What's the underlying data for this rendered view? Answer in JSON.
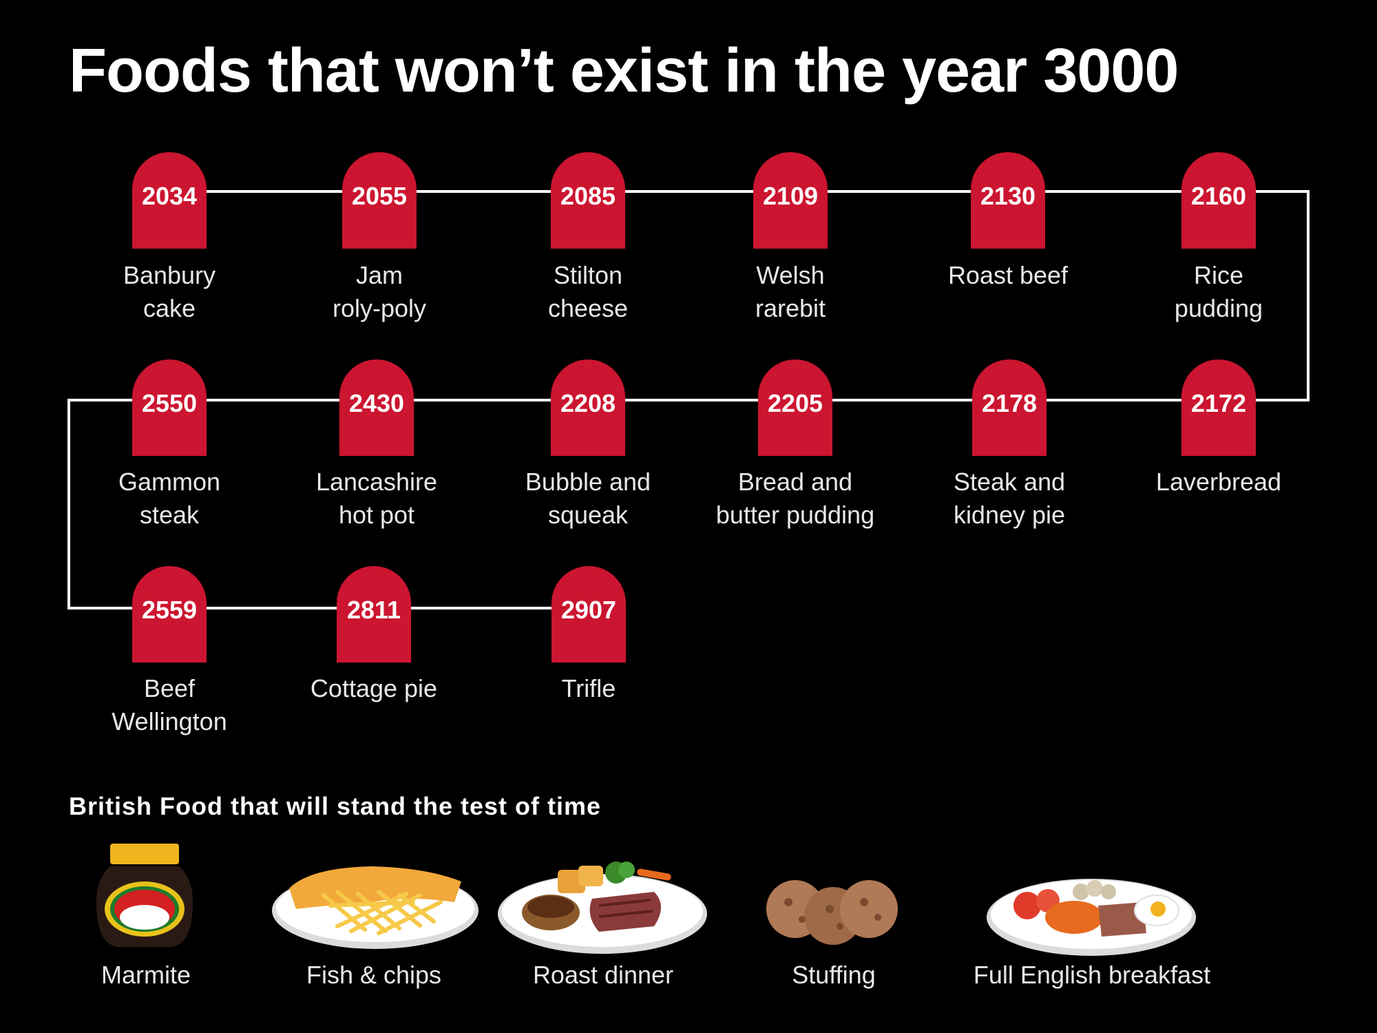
{
  "title": "Foods that won’t exist in the year 3000",
  "subtitle": "British Food that will stand the test of time",
  "colors": {
    "background": "#000000",
    "headstone": "#cc1530",
    "line": "#ffffff",
    "text": "#ffffff"
  },
  "timeline": [
    {
      "year": "2034",
      "food": "Banbury\ncake"
    },
    {
      "year": "2055",
      "food": "Jam\nroly-poly"
    },
    {
      "year": "2085",
      "food": "Stilton\ncheese"
    },
    {
      "year": "2109",
      "food": "Welsh\nrarebit"
    },
    {
      "year": "2130",
      "food": "Roast beef"
    },
    {
      "year": "2160",
      "food": "Rice\npudding"
    },
    {
      "year": "2172",
      "food": "Laverbread"
    },
    {
      "year": "2178",
      "food": "Steak and\nkidney pie"
    },
    {
      "year": "2205",
      "food": "Bread and\nbutter pudding"
    },
    {
      "year": "2208",
      "food": "Bubble and\nsqueak"
    },
    {
      "year": "2430",
      "food": "Lancashire\nhot pot"
    },
    {
      "year": "2550",
      "food": "Gammon\nsteak"
    },
    {
      "year": "2559",
      "food": "Beef\nWellington"
    },
    {
      "year": "2811",
      "food": "Cottage pie"
    },
    {
      "year": "2907",
      "food": "Trifle"
    }
  ],
  "lasting_foods": [
    {
      "name": "Marmite",
      "icon": "marmite-jar-icon"
    },
    {
      "name": "Fish & chips",
      "icon": "fish-and-chips-icon"
    },
    {
      "name": "Roast dinner",
      "icon": "roast-dinner-icon"
    },
    {
      "name": "Stuffing",
      "icon": "stuffing-balls-icon"
    },
    {
      "name": "Full English breakfast",
      "icon": "full-english-breakfast-icon"
    }
  ]
}
